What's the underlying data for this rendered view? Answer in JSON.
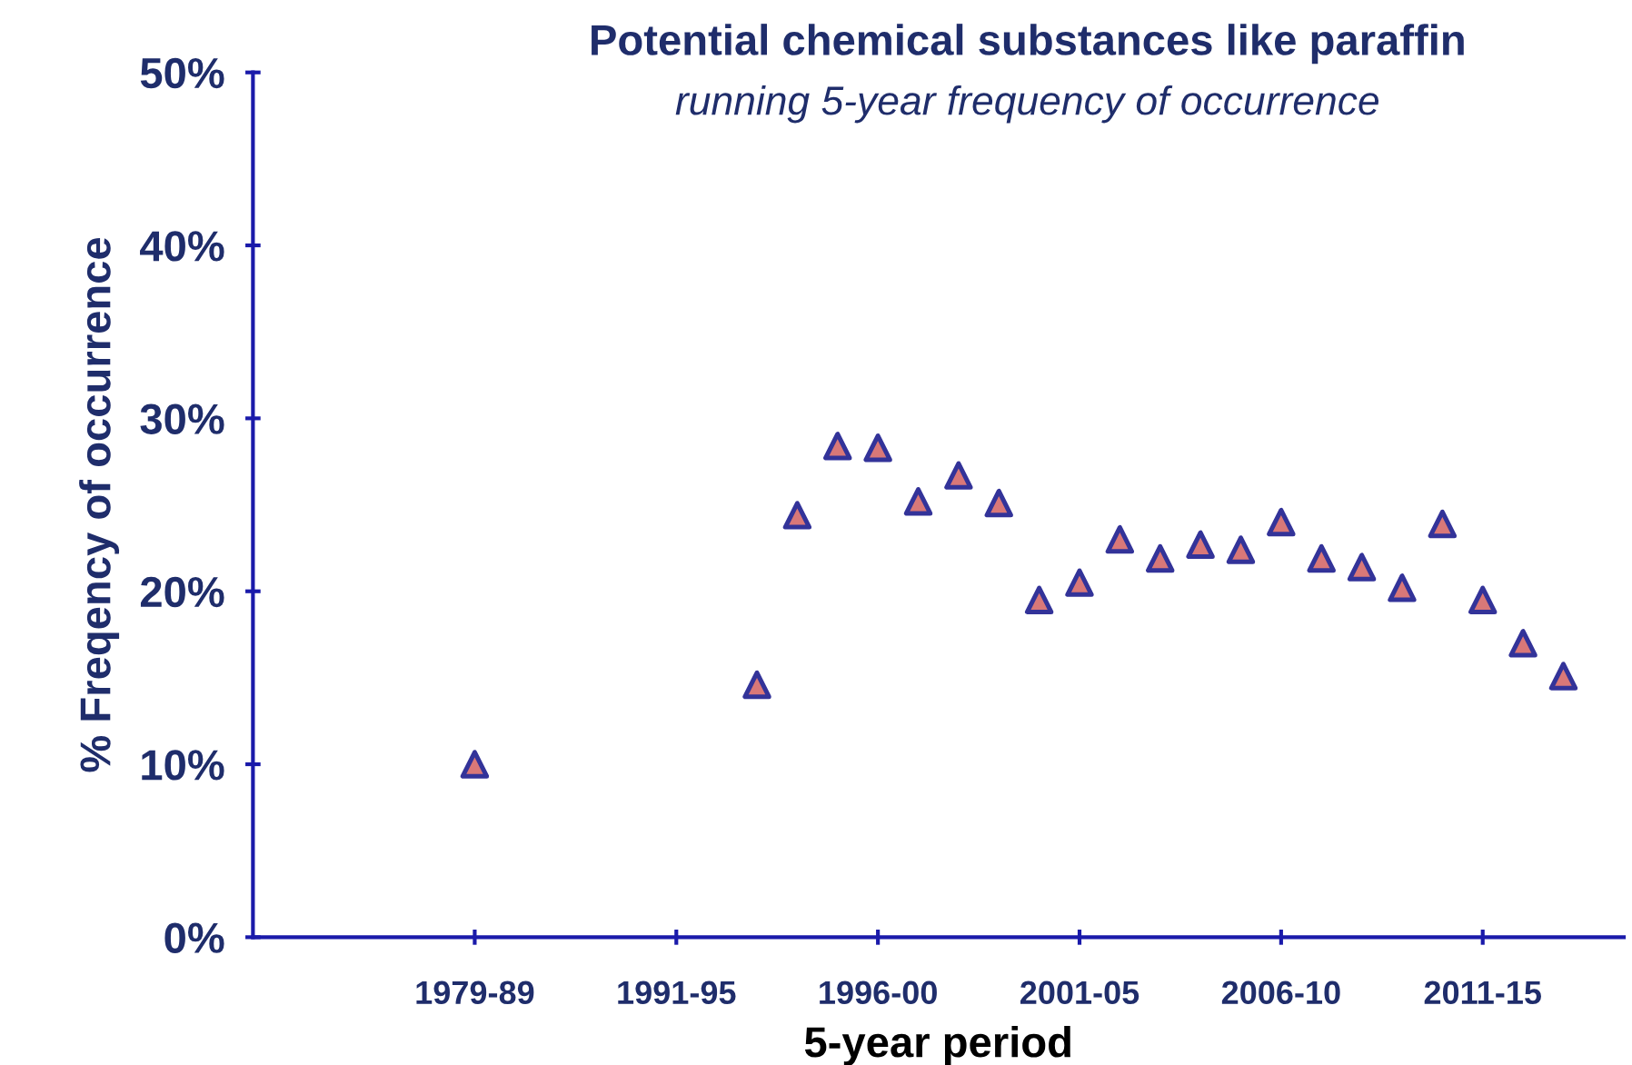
{
  "chart_data": {
    "type": "scatter",
    "title": "Potential chemical substances like paraffin",
    "subtitle": "running 5-year frequency of occurrence",
    "xlabel": "5-year period",
    "ylabel": "% Freqency of occurrence",
    "categories": [
      null,
      null,
      null,
      null,
      null,
      "1979-89",
      null,
      null,
      null,
      null,
      "1991-95",
      null,
      null,
      null,
      null,
      "1996-00",
      null,
      null,
      null,
      null,
      "2001-05",
      null,
      null,
      null,
      null,
      "2006-10",
      null,
      null,
      null,
      null,
      "2011-15",
      null,
      null,
      null
    ],
    "series": [
      {
        "color": "#d97878",
        "values": [
          null,
          null,
          null,
          null,
          null,
          10.0,
          null,
          null,
          null,
          null,
          null,
          null,
          14.6,
          24.4,
          28.4,
          28.3,
          25.2,
          26.7,
          25.1,
          19.5,
          20.5,
          23.0,
          21.9,
          22.7,
          22.4,
          24.0,
          21.9,
          21.4,
          20.2,
          23.9,
          19.5,
          17.0,
          15.1,
          null
        ]
      }
    ],
    "ylim": [
      0,
      50
    ],
    "yticks": [
      {
        "value": 0,
        "label": "0%"
      },
      {
        "value": 10,
        "label": "10%"
      },
      {
        "value": 20,
        "label": "20%"
      },
      {
        "value": 30,
        "label": "30%"
      },
      {
        "value": 40,
        "label": "40%"
      },
      {
        "value": 50,
        "label": "50%"
      }
    ],
    "grid": false,
    "legend": false,
    "marker": "triangle"
  }
}
